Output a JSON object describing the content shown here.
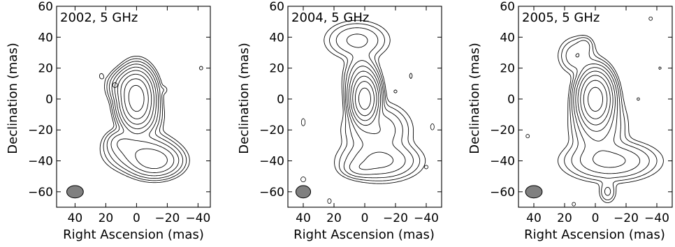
{
  "chart_data": [
    {
      "type": "contour",
      "title": "2002, 5 GHz",
      "xlabel": "Right Ascension (mas)",
      "ylabel": "Declination (mas)",
      "xlim": [
        52,
        -48
      ],
      "ylim": [
        -70,
        60
      ],
      "xticks": [
        40,
        20,
        0,
        -20,
        -40
      ],
      "xtick_labels": [
        "40",
        "20",
        "0",
        "−20",
        "−40"
      ],
      "yticks": [
        -60,
        -40,
        -20,
        0,
        20,
        40,
        60
      ],
      "ytick_labels": [
        "−60",
        "−40",
        "−20",
        "0",
        "20",
        "40",
        "60"
      ],
      "beam": {
        "ra": 40,
        "dec": -60,
        "major": 5,
        "minor": 4.5
      },
      "components": [
        {
          "ra": 0,
          "dec": 0,
          "sra": 5,
          "sdec": 8,
          "amp": 1.0
        },
        {
          "ra": 4,
          "dec": 8,
          "sra": 6,
          "sdec": 5,
          "amp": 0.12
        },
        {
          "ra": -3,
          "dec": -12,
          "sra": 6,
          "sdec": 6,
          "amp": 0.05
        },
        {
          "ra": -12,
          "dec": -40,
          "sra": 8,
          "sdec": 5,
          "amp": 0.12
        },
        {
          "ra": -2,
          "dec": -34,
          "sra": 10,
          "sdec": 6,
          "amp": 0.06
        },
        {
          "ra": 10,
          "dec": -28,
          "sra": 5,
          "sdec": 4,
          "amp": 0.03
        },
        {
          "ra": 23,
          "dec": 15,
          "sra": 1.6,
          "sdec": 2.2,
          "amp": 0.003
        },
        {
          "ra": -42,
          "dec": 20,
          "sra": 2,
          "sdec": 2,
          "amp": 0.003
        },
        {
          "ra": -18,
          "dec": 6,
          "sra": 1.8,
          "sdec": 1.8,
          "amp": 0.0035
        }
      ],
      "negative_components": [
        {
          "ra": 14,
          "dec": 9,
          "sra": 2,
          "sdec": 2,
          "amp": 0.0035
        }
      ],
      "levels": [
        0.0025,
        0.005,
        0.01,
        0.02,
        0.04,
        0.08,
        0.16,
        0.32,
        0.64
      ]
    },
    {
      "type": "contour",
      "title": "2004, 5 GHz",
      "xlabel": "Right Ascension (mas)",
      "ylabel": "Declination (mas)",
      "xlim": [
        50,
        -50
      ],
      "ylim": [
        -70,
        60
      ],
      "xticks": [
        40,
        20,
        0,
        -20,
        -40
      ],
      "xtick_labels": [
        "40",
        "20",
        "0",
        "−20",
        "−40"
      ],
      "yticks": [
        -60,
        -40,
        -20,
        0,
        20,
        40,
        60
      ],
      "ytick_labels": [
        "−60",
        "−40",
        "−20",
        "0",
        "20",
        "40",
        "60"
      ],
      "beam": {
        "ra": 40,
        "dec": -60,
        "major": 5,
        "minor": 4
      },
      "components": [
        {
          "ra": 0,
          "dec": 0,
          "sra": 4,
          "sdec": 7,
          "amp": 1.0
        },
        {
          "ra": 2,
          "dec": 12,
          "sra": 5,
          "sdec": 8,
          "amp": 0.06
        },
        {
          "ra": 5,
          "dec": 38,
          "sra": 10,
          "sdec": 6,
          "amp": 0.025
        },
        {
          "ra": -8,
          "dec": -20,
          "sra": 10,
          "sdec": 8,
          "amp": 0.04
        },
        {
          "ra": -10,
          "dec": -40,
          "sra": 12,
          "sdec": 6,
          "amp": 0.05
        },
        {
          "ra": 3,
          "dec": -45,
          "sra": 6,
          "sdec": 3,
          "amp": 0.02
        },
        {
          "ra": -30,
          "dec": 15,
          "sra": 1.5,
          "sdec": 3,
          "amp": 0.003
        },
        {
          "ra": -20,
          "dec": 5,
          "sra": 1.5,
          "sdec": 1.5,
          "amp": 0.003
        }
      ],
      "negative_components": [
        {
          "ra": 40,
          "dec": -15,
          "sra": 1.5,
          "sdec": 3,
          "amp": 0.0035
        },
        {
          "ra": 40,
          "dec": -52,
          "sra": 2,
          "sdec": 2,
          "amp": 0.0035
        },
        {
          "ra": 23,
          "dec": -66,
          "sra": 1.5,
          "sdec": 2,
          "amp": 0.0035
        },
        {
          "ra": -44,
          "dec": -18,
          "sra": 1.5,
          "sdec": 2.5,
          "amp": 0.0035
        },
        {
          "ra": -40,
          "dec": -44,
          "sra": 1.5,
          "sdec": 1.5,
          "amp": 0.0035
        }
      ],
      "levels": [
        0.0025,
        0.005,
        0.01,
        0.02,
        0.04,
        0.08,
        0.16,
        0.32,
        0.64
      ]
    },
    {
      "type": "contour",
      "title": "2005, 5 GHz",
      "xlabel": "Right Ascension (mas)",
      "ylabel": "Declination (mas)",
      "xlim": [
        50,
        -50
      ],
      "ylim": [
        -70,
        60
      ],
      "xticks": [
        40,
        20,
        0,
        -20,
        -40
      ],
      "xtick_labels": [
        "40",
        "20",
        "0",
        "−20",
        "−40"
      ],
      "yticks": [
        -60,
        -40,
        -20,
        0,
        20,
        40,
        60
      ],
      "ytick_labels": [
        "−60",
        "−40",
        "−20",
        "0",
        "20",
        "40",
        "60"
      ],
      "beam": {
        "ra": 40,
        "dec": -60,
        "major": 5,
        "minor": 4.5
      },
      "components": [
        {
          "ra": 0,
          "dec": 0,
          "sra": 5,
          "sdec": 8,
          "amp": 1.0
        },
        {
          "ra": -2,
          "dec": -18,
          "sra": 8,
          "sdec": 10,
          "amp": 0.05
        },
        {
          "ra": -10,
          "dec": -40,
          "sra": 14,
          "sdec": 6,
          "amp": 0.05
        },
        {
          "ra": 12,
          "dec": 28,
          "sra": 6,
          "sdec": 6,
          "amp": 0.02
        },
        {
          "ra": 7,
          "dec": 35,
          "sra": 3,
          "sdec": 3,
          "amp": 0.01
        },
        {
          "ra": -8,
          "dec": -60,
          "sra": 3,
          "sdec": 4,
          "amp": 0.012
        },
        {
          "ra": -42,
          "dec": 20,
          "sra": 1.5,
          "sdec": 1.5,
          "amp": 0.003
        },
        {
          "ra": -28,
          "dec": 0,
          "sra": 1.5,
          "sdec": 1.5,
          "amp": 0.003
        }
      ],
      "negative_components": [
        {
          "ra": 44,
          "dec": -24,
          "sra": 1.5,
          "sdec": 1.5,
          "amp": 0.0035
        },
        {
          "ra": 14,
          "dec": -68,
          "sra": 1.5,
          "sdec": 1.5,
          "amp": 0.0035
        },
        {
          "ra": -36,
          "dec": 52,
          "sra": 1.5,
          "sdec": 1.5,
          "amp": 0.0035
        }
      ],
      "levels": [
        0.0025,
        0.005,
        0.01,
        0.02,
        0.04,
        0.08,
        0.16,
        0.32,
        0.64
      ]
    }
  ]
}
